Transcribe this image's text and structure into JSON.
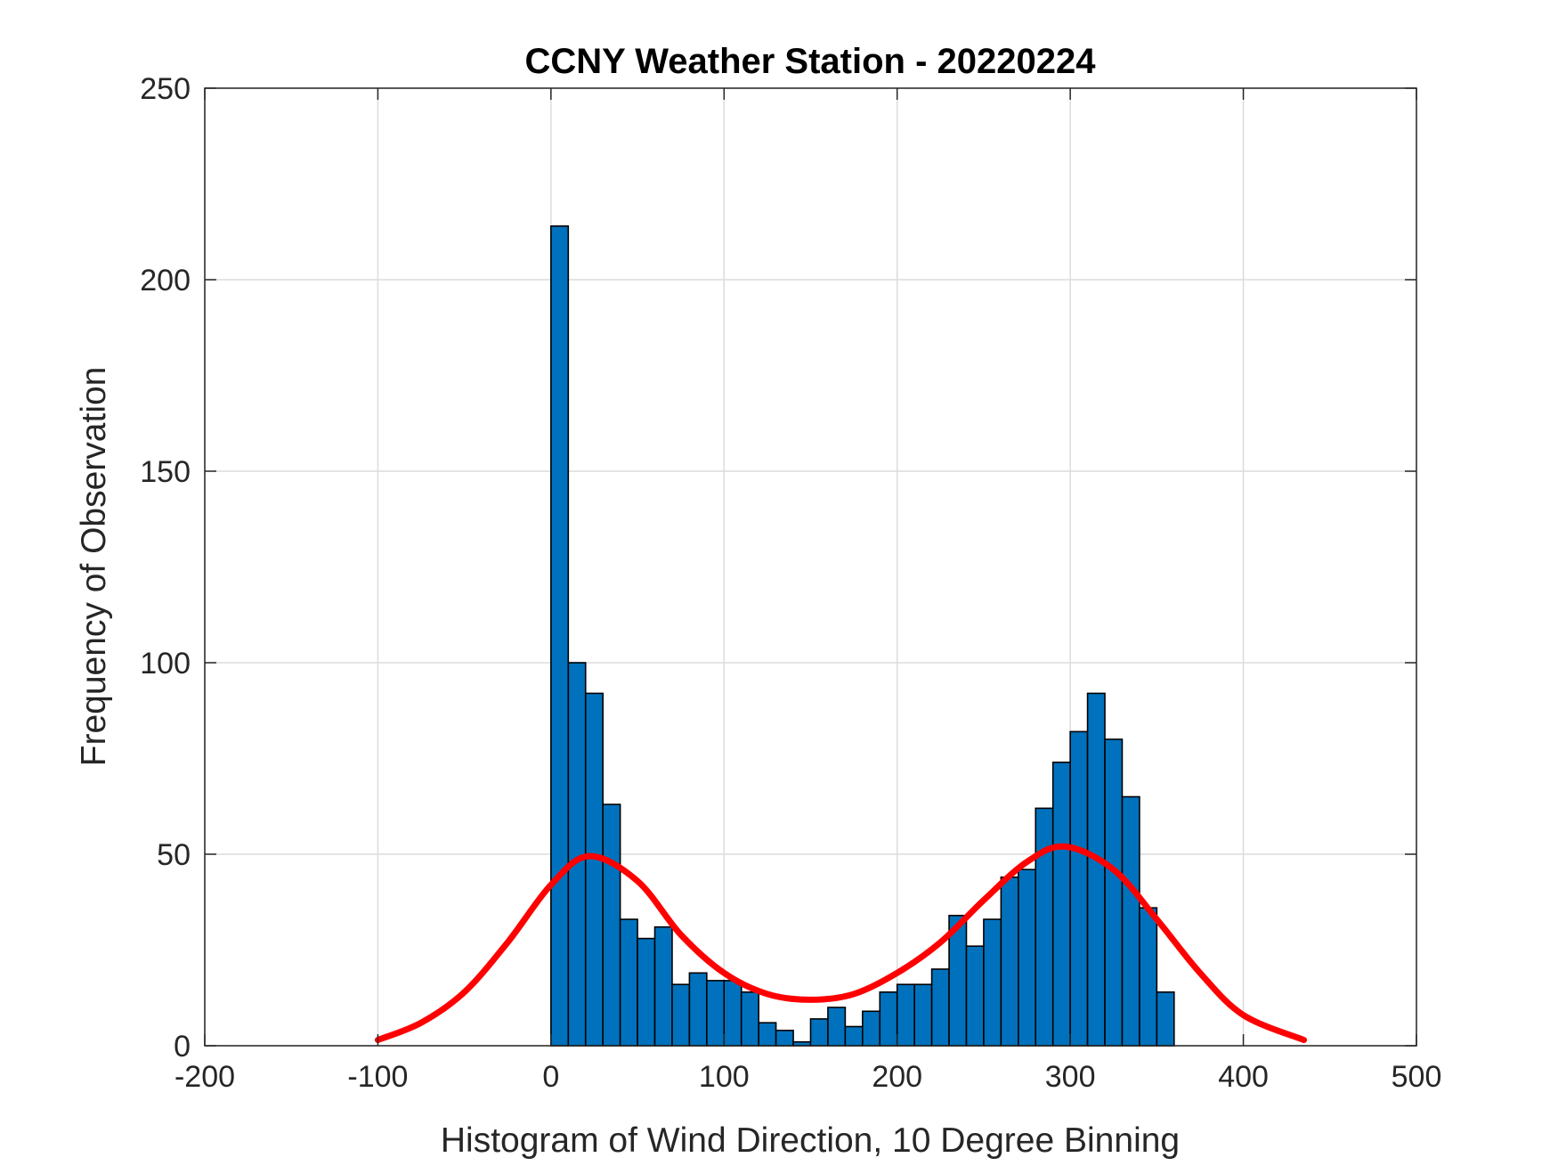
{
  "chart_data": {
    "type": "bar",
    "title": "CCNY Weather Station - 20220224",
    "xlabel": "Histogram of Wind Direction, 10 Degree Binning",
    "ylabel": "Frequency of Observation",
    "xlim": [
      -200,
      500
    ],
    "ylim": [
      0,
      250
    ],
    "xticks": [
      "-200",
      "-100",
      "0",
      "100",
      "200",
      "300",
      "400",
      "500"
    ],
    "yticks": [
      "0",
      "50",
      "100",
      "150",
      "200",
      "250"
    ],
    "grid": true,
    "bin_width": 10,
    "bin_start": 0,
    "values": [
      214,
      100,
      92,
      63,
      33,
      28,
      31,
      16,
      19,
      17,
      17,
      14,
      6,
      4,
      1,
      7,
      10,
      5,
      9,
      14,
      16,
      16,
      20,
      34,
      26,
      33,
      44,
      46,
      62,
      74,
      82,
      92,
      80,
      65,
      36,
      14
    ],
    "bar_color": "#0072BD",
    "fit_curve": {
      "color": "#FF0000",
      "x": [
        -100,
        -75,
        -50,
        -25,
        0,
        22,
        50,
        75,
        100,
        125,
        150,
        175,
        200,
        225,
        250,
        275,
        297,
        325,
        350,
        375,
        400,
        435
      ],
      "y": [
        1.5,
        6,
        14,
        27,
        42,
        49.5,
        43,
        29,
        19,
        13.5,
        12,
        13.5,
        19,
        27,
        38,
        48,
        52,
        46,
        33,
        19,
        8,
        1.5
      ]
    }
  }
}
